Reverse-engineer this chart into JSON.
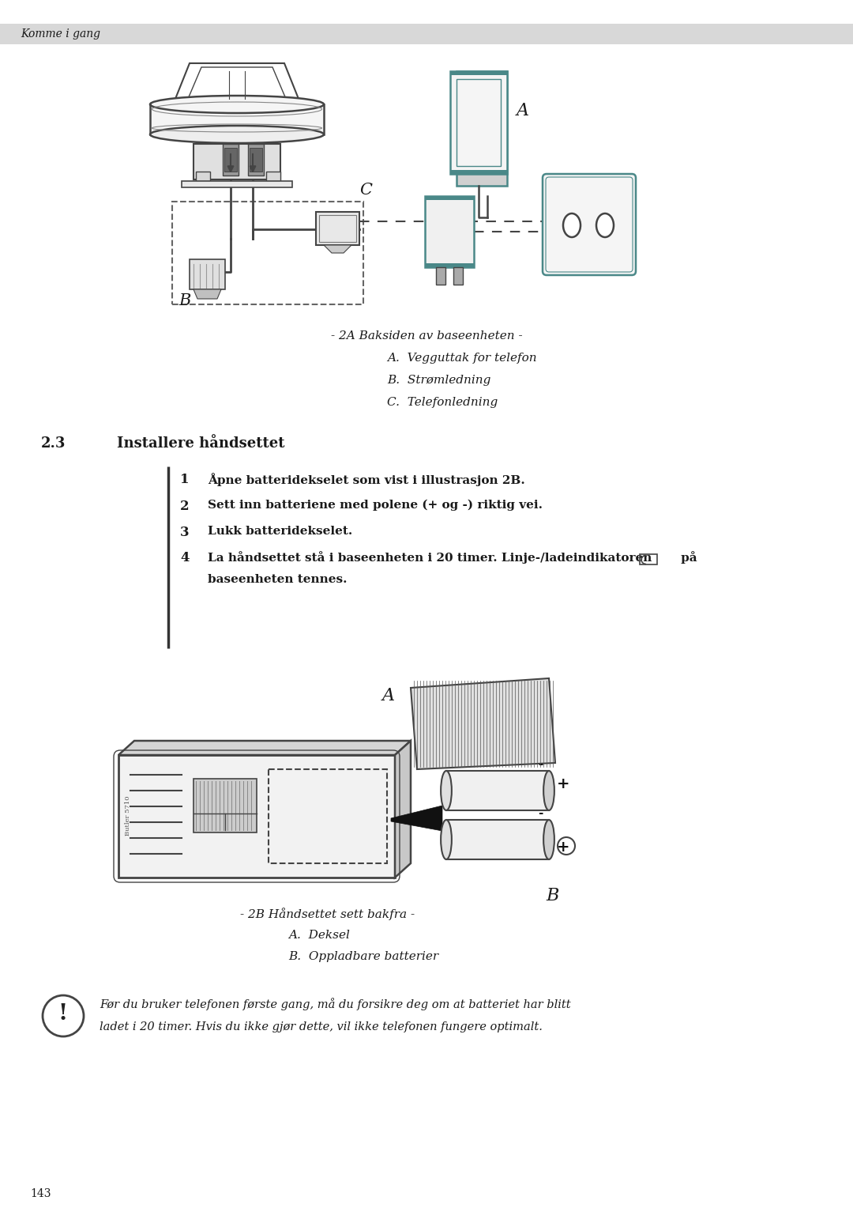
{
  "page_bg": "#ffffff",
  "header_bg": "#d8d8d8",
  "header_text": "Komme i gang",
  "section_number": "2.3",
  "section_title": "Installere håndsettet",
  "caption_2a": "- 2A Baksiden av baseenheten -",
  "caption_a1": "A.  Vegguttak for telefon",
  "caption_b1": "B.  Strømledning",
  "caption_c1": "C.  Telefonledning",
  "caption_2b": "- 2B Håndsettet sett bakfra -",
  "caption_a2": "A.  Deksel",
  "caption_b2": "B.  Oppladbare batterier",
  "step1": "Åpne batteridekselet som vist i illustrasjon 2B.",
  "step2": "Sett inn batteriene med polene (+ og -) riktig vei.",
  "step3": "Lukk batteridekselet.",
  "step4a": "La håndsettet stå i baseenheten i 20 timer. Linje-/ladeindikatoren       på",
  "step4b": "baseenheten tennes.",
  "note_line1": "Før du bruker telefonen første gang, må du forsikre deg om at batteriet har blitt",
  "note_line2": "ladet i 20 timer. Hvis du ikke gjør dette, vil ikke telefonen fungere optimalt.",
  "footer": "143",
  "text_color": "#1a1a1a",
  "dark_gray": "#444444",
  "mid_gray": "#888888",
  "light_gray": "#f0f0f0",
  "teal": "#4a8888",
  "header_fontsize": 10,
  "caption_fontsize": 11,
  "step_fontsize": 11,
  "section_fontsize": 13,
  "note_fontsize": 10.5
}
